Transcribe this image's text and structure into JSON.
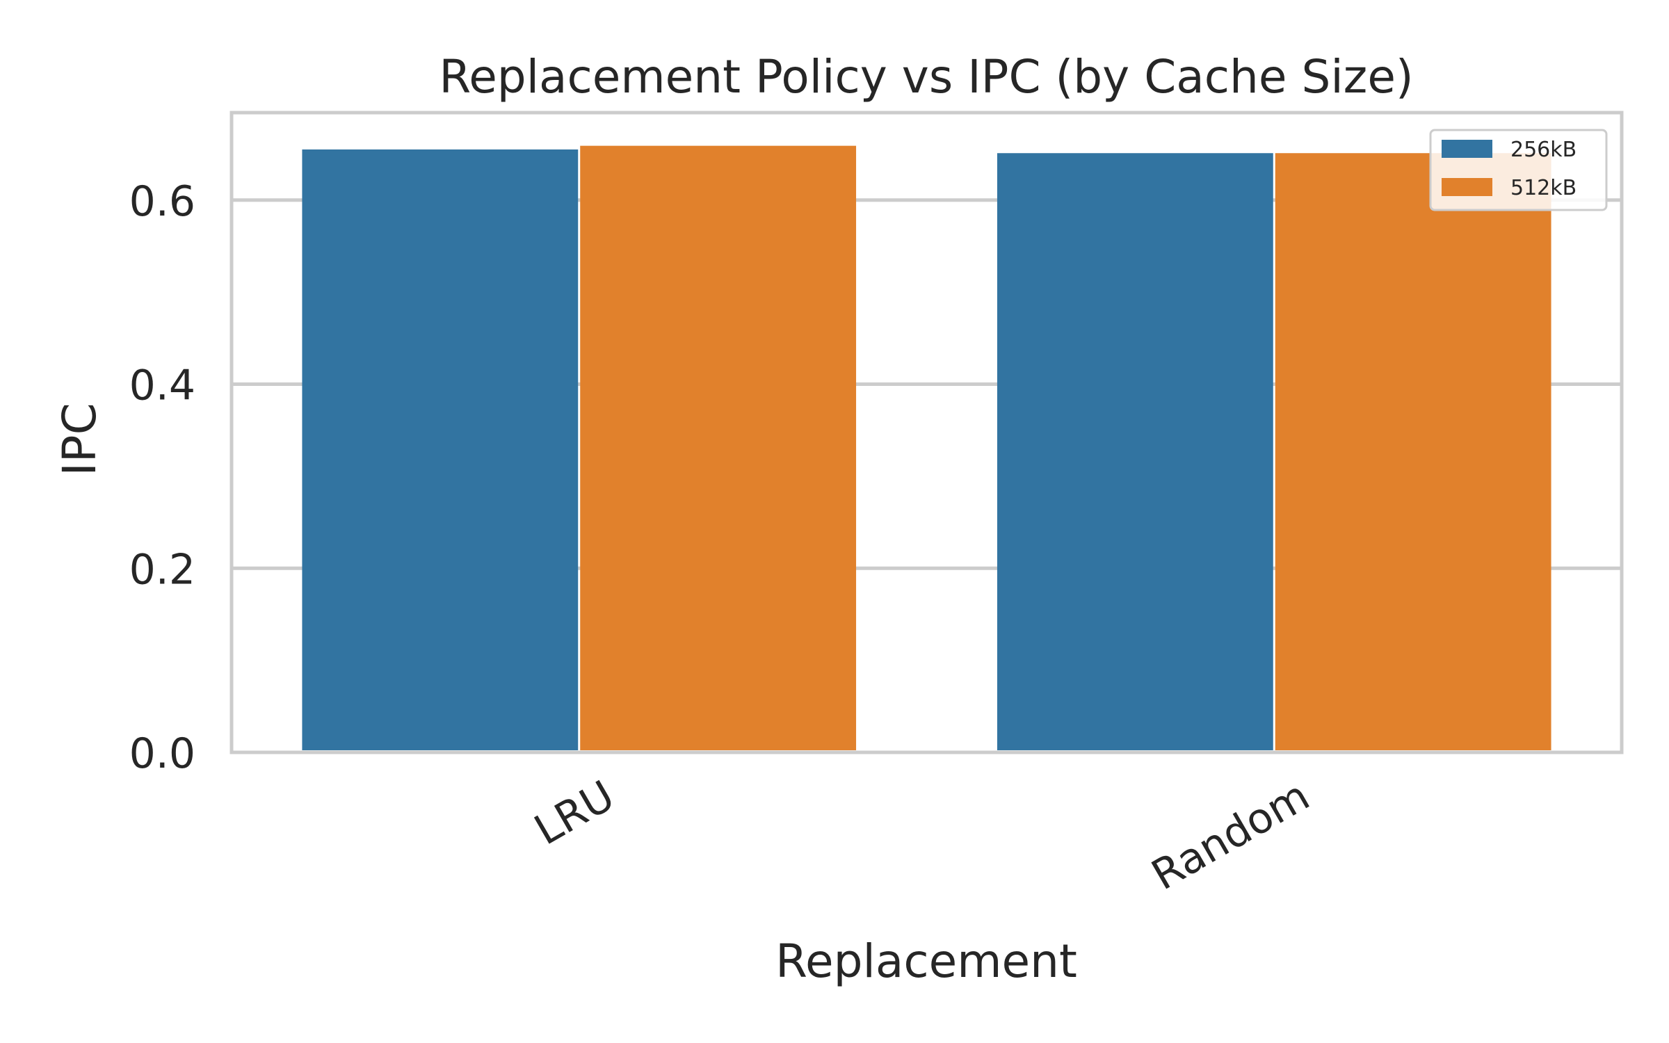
{
  "chart_data": {
    "type": "bar",
    "title": "Replacement Policy vs IPC (by Cache Size)",
    "xlabel": "Replacement",
    "ylabel": "IPC",
    "categories": [
      "LRU",
      "Random"
    ],
    "series": [
      {
        "name": "256kB",
        "color": "#3274a1",
        "values": [
          0.655,
          0.651
        ]
      },
      {
        "name": "512kB",
        "color": "#e1812c",
        "values": [
          0.659,
          0.651
        ]
      }
    ],
    "ylim": [
      0,
      0.695
    ],
    "yticks": [
      0.0,
      0.2,
      0.4,
      0.6
    ],
    "ytick_labels": [
      "0.0",
      "0.2",
      "0.4",
      "0.6"
    ],
    "grid": "y",
    "legend_position": "top-right"
  }
}
